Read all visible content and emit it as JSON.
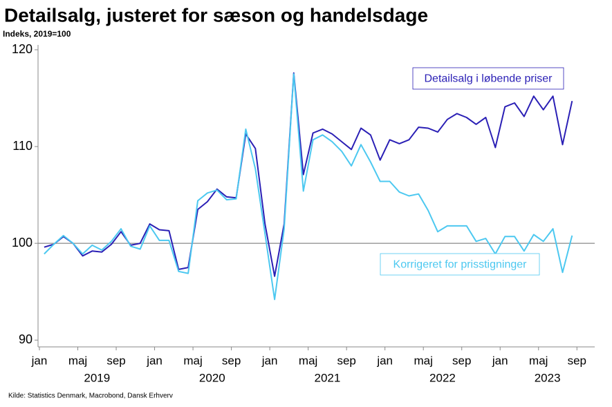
{
  "chart_data": {
    "type": "line",
    "title": "Detailsalg, justeret for sæson og handelsdage",
    "subtitle": "Indeks, 2019=100",
    "source": "Kilde: Statistics Denmark, Macrobond, Dansk Erhverv",
    "x": [
      "2019-01",
      "2019-02",
      "2019-03",
      "2019-04",
      "2019-05",
      "2019-06",
      "2019-07",
      "2019-08",
      "2019-09",
      "2019-10",
      "2019-11",
      "2019-12",
      "2020-01",
      "2020-02",
      "2020-03",
      "2020-04",
      "2020-05",
      "2020-06",
      "2020-07",
      "2020-08",
      "2020-09",
      "2020-10",
      "2020-11",
      "2020-12",
      "2021-01",
      "2021-02",
      "2021-03",
      "2021-04",
      "2021-05",
      "2021-06",
      "2021-07",
      "2021-08",
      "2021-09",
      "2021-10",
      "2021-11",
      "2021-12",
      "2022-01",
      "2022-02",
      "2022-03",
      "2022-04",
      "2022-05",
      "2022-06",
      "2022-07",
      "2022-08",
      "2022-09",
      "2022-10",
      "2022-11",
      "2022-12",
      "2023-01",
      "2023-02",
      "2023-03",
      "2023-04",
      "2023-05",
      "2023-06",
      "2023-07",
      "2023-08"
    ],
    "series": [
      {
        "name": "Detailsalg i løbende priser",
        "color": "#2a1fb5",
        "values": [
          99.6,
          99.9,
          100.7,
          100.0,
          98.7,
          99.2,
          99.1,
          99.9,
          101.2,
          99.8,
          100.0,
          102.0,
          101.4,
          101.3,
          97.3,
          97.5,
          103.5,
          104.3,
          105.6,
          104.8,
          104.7,
          111.3,
          109.8,
          102.0,
          96.6,
          102.0,
          117.6,
          107.1,
          111.4,
          111.8,
          111.3,
          110.5,
          109.7,
          111.9,
          111.2,
          108.6,
          110.7,
          110.3,
          110.7,
          112.0,
          111.9,
          111.5,
          112.8,
          113.4,
          113.0,
          112.3,
          113.0,
          109.9,
          114.1,
          114.5,
          113.1,
          115.2,
          113.8,
          115.2,
          110.2,
          114.7
        ]
      },
      {
        "name": "Korrigeret for prisstigninger",
        "color": "#4cc8f0",
        "values": [
          98.9,
          99.9,
          100.8,
          100.0,
          98.9,
          99.8,
          99.3,
          100.2,
          101.5,
          99.7,
          99.4,
          101.8,
          100.3,
          100.3,
          97.1,
          96.9,
          104.4,
          105.2,
          105.5,
          104.5,
          104.6,
          111.8,
          107.7,
          101.0,
          94.2,
          101.5,
          117.5,
          105.4,
          110.7,
          111.2,
          110.5,
          109.5,
          108.0,
          110.2,
          108.4,
          106.4,
          106.4,
          105.3,
          104.9,
          105.1,
          103.4,
          101.2,
          101.8,
          101.8,
          101.8,
          100.2,
          100.5,
          98.9,
          100.7,
          100.7,
          99.2,
          100.9,
          100.2,
          101.5,
          97.0,
          100.8
        ]
      }
    ],
    "ylim": [
      89.3,
      120.5
    ],
    "yticks": [
      90,
      100,
      110,
      120
    ],
    "reference_line": 100,
    "xticks": [
      {
        "value": "2019-01",
        "label": "jan"
      },
      {
        "value": "2019-05",
        "label": "maj"
      },
      {
        "value": "2019-09",
        "label": "sep"
      },
      {
        "value": "2020-01",
        "label": "jan"
      },
      {
        "value": "2020-05",
        "label": "maj"
      },
      {
        "value": "2020-09",
        "label": "sep"
      },
      {
        "value": "2021-01",
        "label": "jan"
      },
      {
        "value": "2021-05",
        "label": "maj"
      },
      {
        "value": "2021-09",
        "label": "sep"
      },
      {
        "value": "2022-01",
        "label": "jan"
      },
      {
        "value": "2022-05",
        "label": "maj"
      },
      {
        "value": "2022-09",
        "label": "sep"
      },
      {
        "value": "2023-01",
        "label": "jan"
      },
      {
        "value": "2023-05",
        "label": "maj"
      },
      {
        "value": "2023-09",
        "label": "sep"
      }
    ],
    "years": [
      "2019",
      "2020",
      "2021",
      "2022",
      "2023"
    ]
  }
}
